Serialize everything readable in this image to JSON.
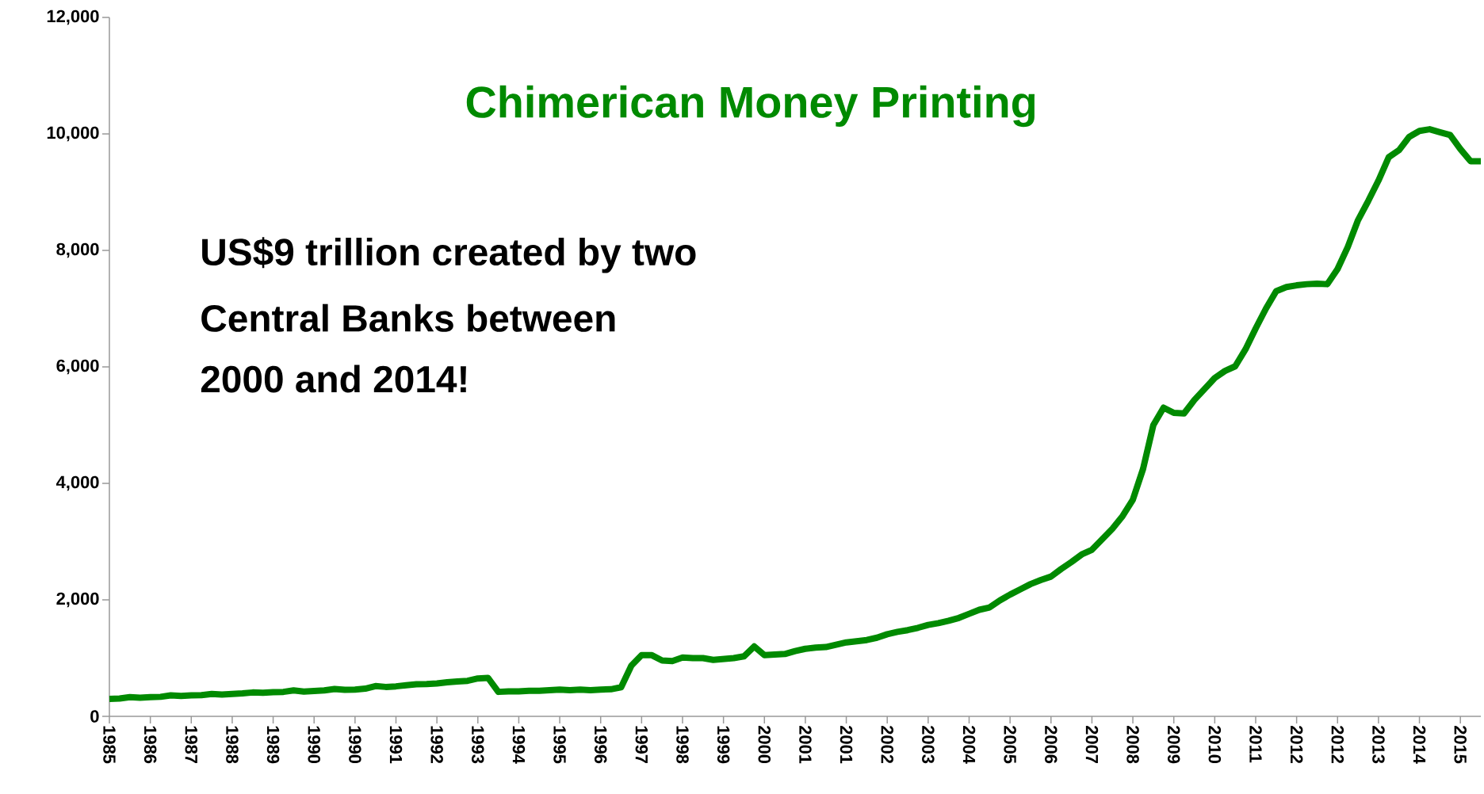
{
  "chart_data": {
    "type": "line",
    "title": "Chimerican Money Printing",
    "annotations": [
      "US$9 trillion created by two",
      "Central Banks between",
      "2000 and 2014!"
    ],
    "categories": [
      "1985",
      null,
      null,
      null,
      "1986",
      null,
      null,
      null,
      "1987",
      null,
      null,
      null,
      "1988",
      null,
      null,
      null,
      "1989",
      null,
      null,
      null,
      "1990",
      null,
      null,
      null,
      "1990",
      null,
      null,
      null,
      "1991",
      null,
      null,
      null,
      "1992",
      null,
      null,
      null,
      "1993",
      null,
      null,
      null,
      "1994",
      null,
      null,
      null,
      "1995",
      null,
      null,
      null,
      "1996",
      null,
      null,
      null,
      "1997",
      null,
      null,
      null,
      "1998",
      null,
      null,
      null,
      "1999",
      null,
      null,
      null,
      "2000",
      null,
      null,
      null,
      "2001",
      null,
      null,
      null,
      "2001",
      null,
      null,
      null,
      "2002",
      null,
      null,
      null,
      "2003",
      null,
      null,
      null,
      "2004",
      null,
      null,
      null,
      "2005",
      null,
      null,
      null,
      "2006",
      null,
      null,
      null,
      "2007",
      null,
      null,
      null,
      "2008",
      null,
      null,
      null,
      "2009",
      null,
      null,
      null,
      "2010",
      null,
      null,
      null,
      "2011",
      null,
      null,
      null,
      "2012",
      null,
      null,
      null,
      "2012",
      null,
      null,
      null,
      "2013",
      null,
      null,
      null,
      "2014",
      null,
      null,
      null,
      "2015",
      null,
      null
    ],
    "values": [
      300,
      305,
      330,
      320,
      330,
      335,
      360,
      350,
      360,
      365,
      385,
      375,
      385,
      395,
      410,
      405,
      415,
      420,
      445,
      425,
      435,
      445,
      470,
      455,
      460,
      475,
      520,
      505,
      515,
      535,
      550,
      555,
      565,
      585,
      600,
      610,
      650,
      660,
      420,
      430,
      430,
      440,
      440,
      450,
      460,
      450,
      460,
      450,
      460,
      465,
      500,
      870,
      1050,
      1050,
      960,
      950,
      1010,
      1000,
      1000,
      970,
      985,
      1000,
      1030,
      1200,
      1050,
      1060,
      1070,
      1120,
      1160,
      1180,
      1190,
      1230,
      1270,
      1290,
      1310,
      1350,
      1410,
      1450,
      1480,
      1520,
      1570,
      1600,
      1640,
      1690,
      1760,
      1830,
      1870,
      1990,
      2090,
      2180,
      2270,
      2340,
      2400,
      2530,
      2650,
      2780,
      2860,
      3040,
      3220,
      3440,
      3720,
      4250,
      5000,
      5300,
      5210,
      5200,
      5430,
      5620,
      5810,
      5930,
      6010,
      6300,
      6660,
      7000,
      7300,
      7370,
      7400,
      7420,
      7430,
      7420,
      7680,
      8060,
      8520,
      8850,
      9200,
      9600,
      9720,
      9950,
      10050,
      10080,
      10030,
      9980,
      9740,
      9530,
      9530
    ],
    "color": "#008a00",
    "ylim": [
      0,
      12000
    ],
    "yticks": [
      {
        "value": 0,
        "label": "0"
      },
      {
        "value": 2000,
        "label": "2,000"
      },
      {
        "value": 4000,
        "label": "4,000"
      },
      {
        "value": 6000,
        "label": "6,000"
      },
      {
        "value": 8000,
        "label": "8,000"
      },
      {
        "value": 10000,
        "label": "10,000"
      },
      {
        "value": 12000,
        "label": "12,000"
      }
    ]
  }
}
